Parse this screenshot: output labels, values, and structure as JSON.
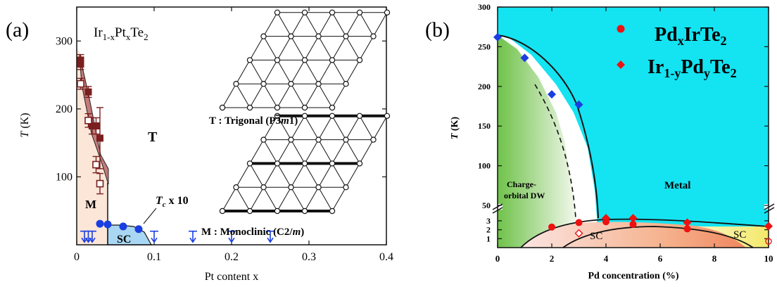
{
  "panel_a": {
    "label": "(a)",
    "compound_label": {
      "prefix": "Ir",
      "sub1": "1-x",
      "mid": "Pt",
      "sub2": "x",
      "tail": "Te",
      "sub3": "2"
    },
    "region_T": "T",
    "region_M": "M",
    "region_SC": "SC",
    "tc_annotation": {
      "sym": "T",
      "sub": "c",
      "rest": " x 10"
    },
    "trigonal_caption": {
      "pre": "T : Trigonal (P",
      "bar": "3",
      "it": "m",
      "post": "1)"
    },
    "monoclinic_caption": {
      "pre": "M : Monoclinic (C2/",
      "it": "m",
      "post": ")"
    }
  },
  "panel_b": {
    "label": "(b)",
    "legend": [
      {
        "marker": "circle",
        "main": "Pd",
        "s1": "x",
        "m2": "IrTe",
        "s2": "2"
      },
      {
        "marker": "diamond",
        "main": "Ir",
        "s1": "1-y",
        "m2": "Pd",
        "s2": "y",
        "m3": "Te",
        "s3": "2"
      }
    ],
    "region_labels": {
      "cdw1": "Charge-",
      "cdw2": "orbital DW",
      "metal": "Metal",
      "sc1": "SC",
      "sc2": "SC"
    }
  },
  "chart_data": [
    {
      "type": "scatter",
      "title": "",
      "xlabel": "Pt content x",
      "ylabel": "T (K)",
      "xlim": [
        0,
        0.4
      ],
      "ylim": [
        0,
        350
      ],
      "xticks": [
        0,
        0.1,
        0.2,
        0.3,
        0.4
      ],
      "xtick_labels": [
        "0",
        "0.1",
        "0.2",
        "0.3",
        "0.4"
      ],
      "yticks": [
        100,
        200,
        300
      ],
      "ytick_labels": [
        "100",
        "200",
        "300"
      ],
      "series": [
        {
          "marker": "filled-square",
          "color": "#7a1f1f",
          "x": [
            0.005,
            0.005,
            0.015,
            0.02,
            0.025,
            0.03
          ],
          "y": [
            272,
            266,
            225,
            175,
            175,
            157
          ],
          "yerr": [
            8,
            8,
            8,
            12,
            12,
            45
          ]
        },
        {
          "marker": "open-square",
          "color": "#7a1f1f",
          "x": [
            0.005,
            0.015,
            0.025,
            0.03
          ],
          "y": [
            237,
            183,
            118,
            90
          ],
          "yerr": [
            8,
            10,
            12,
            15
          ]
        },
        {
          "marker": "filled-circle",
          "color": "#1a3ee0",
          "x": [
            0.03,
            0.04,
            0.06,
            0.08
          ],
          "y": [
            31,
            30,
            27,
            23
          ]
        },
        {
          "marker": "down-arrow",
          "color": "#1a3ee0",
          "x": [
            0.01,
            0.015,
            0.02,
            0.1,
            0.15,
            0.2,
            0.25
          ]
        }
      ]
    },
    {
      "type": "scatter",
      "title": "",
      "xlabel": "Pd concentration (%)",
      "ylabel": "T (K)",
      "xlim": [
        0,
        10
      ],
      "xticks": [
        0,
        2,
        4,
        6,
        8,
        10
      ],
      "xtick_labels": [
        "0",
        "2",
        "4",
        "6",
        "8",
        "10"
      ],
      "yticks_upper": [
        50,
        100,
        150,
        200,
        250,
        300
      ],
      "ytick_labels_upper": [
        "50",
        "100",
        "150",
        "200",
        "250",
        "300"
      ],
      "yticks_lower": [
        1,
        2,
        3
      ],
      "ytick_labels_lower": [
        "1",
        "2",
        "3"
      ],
      "y_axis_break": true,
      "series": [
        {
          "name": "PdxIrTe2",
          "marker": "filled-circle",
          "color": "#ee1111",
          "x": [
            2,
            3,
            4,
            5,
            7
          ],
          "y": [
            2.3,
            2.8,
            2.9,
            2.6,
            2.1
          ]
        },
        {
          "name": "Ir1-yPdyTe2",
          "marker": "filled-diamond",
          "color": "#ee1111",
          "x": [
            4,
            5,
            7,
            10
          ],
          "y": [
            3.3,
            3.3,
            2.8,
            2.4
          ]
        },
        {
          "marker": "open-diamond",
          "color": "#ee1111",
          "x": [
            3
          ],
          "y": [
            1.6
          ]
        },
        {
          "marker": "open-circle",
          "color": "#ee1111",
          "x": [
            10
          ],
          "y": [
            0.7
          ]
        },
        {
          "marker": "filled-diamond",
          "color": "#1a3ee0",
          "x": [
            0,
            1,
            2,
            3
          ],
          "y": [
            262,
            236,
            190,
            177
          ]
        }
      ],
      "legend_position": "top-right"
    }
  ]
}
